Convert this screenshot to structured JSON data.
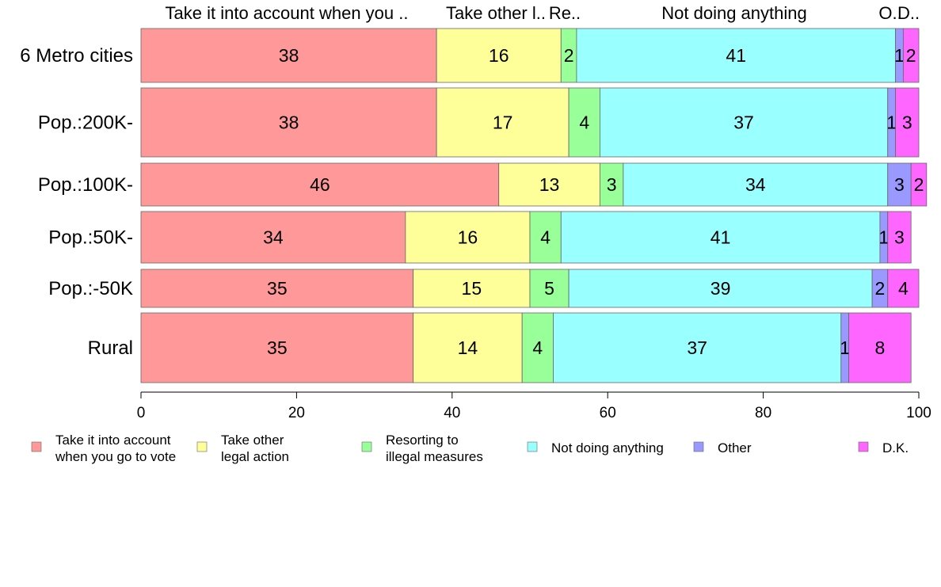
{
  "chart_data": {
    "type": "bar",
    "orientation": "horizontal",
    "stacked": true,
    "categories": [
      "6 Metro cities",
      "Pop.:200K-",
      "Pop.:100K-",
      "Pop.:50K-",
      "Pop.:-50K",
      "Rural"
    ],
    "series": [
      {
        "name": "Take it into account when you go to vote",
        "top_label": "Take it into account when you ..",
        "legend_lines": [
          "Take it into account",
          "when you go to vote"
        ],
        "color": "#ff9999",
        "values": [
          38,
          38,
          46,
          34,
          35,
          35
        ]
      },
      {
        "name": "Take other legal action",
        "top_label": "Take other l..",
        "legend_lines": [
          "Take other",
          "legal action"
        ],
        "color": "#ffff99",
        "values": [
          16,
          17,
          13,
          16,
          15,
          14
        ]
      },
      {
        "name": "Resorting to illegal measures",
        "top_label": "Re..",
        "legend_lines": [
          "Resorting to",
          "illegal measures"
        ],
        "color": "#99ff99",
        "values": [
          2,
          4,
          3,
          4,
          5,
          4
        ]
      },
      {
        "name": "Not doing anything",
        "top_label": "Not doing anything",
        "legend_lines": [
          "Not doing anything"
        ],
        "color": "#99ffff",
        "values": [
          41,
          37,
          34,
          41,
          39,
          37
        ]
      },
      {
        "name": "Other",
        "top_label": "O..",
        "legend_lines": [
          "Other"
        ],
        "color": "#9999ff",
        "values": [
          1,
          1,
          3,
          1,
          2,
          1
        ]
      },
      {
        "name": "D.K.",
        "top_label": "D..",
        "legend_lines": [
          "D.K."
        ],
        "color": "#ff66ff",
        "values": [
          2,
          3,
          2,
          3,
          4,
          8
        ]
      }
    ],
    "xlim": [
      0,
      100
    ],
    "x_ticks": [
      0,
      20,
      40,
      60,
      80,
      100
    ],
    "legend_position": "bottom",
    "grid": false
  }
}
